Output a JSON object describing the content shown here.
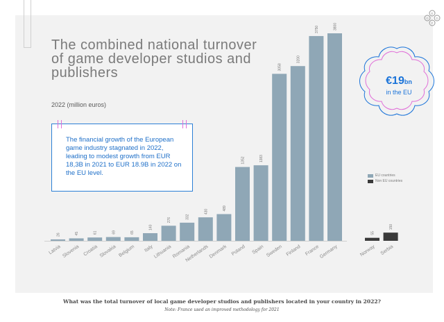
{
  "header": {
    "title": "The combined national turnover of game developer studios and publishers",
    "subtitle": "2022 (million euros)"
  },
  "callout": {
    "text": "The financial growth of the European game industry stagnated in 2022, leading to modest growth from EUR 18,3B in 2021 to EUR 18.9B in 2022 on the EU level."
  },
  "badge": {
    "amount": "€19",
    "unit": "bn",
    "label": "in the EU"
  },
  "logo": {
    "letters": [
      "E",
      "G",
      "D",
      "F"
    ]
  },
  "footer": {
    "question": "What was the total turnover of local game developer studios and publishers located in your country in 2022?",
    "note": "Note: France used an improved methodology for 2021"
  },
  "colors": {
    "eu": "#8fa7b6",
    "non_eu": "#3a3a3a",
    "accent": "#1a73d9",
    "pink": "#e06fd8"
  },
  "chart_data": {
    "type": "bar",
    "title": "The combined national turnover of game developer studios and publishers",
    "subtitle": "2022 (million euros)",
    "legend": {
      "position": "right",
      "entries": [
        "EU countries",
        "Non EU countries"
      ]
    },
    "series": [
      {
        "name": "EU countries",
        "categories": [
          "Latvia",
          "Slovenia",
          "Croatia",
          "Slovakia",
          "Belgium",
          "Italy",
          "Lithuania",
          "Romania",
          "Netherlands",
          "Denmark",
          "Poland",
          "Spain",
          "Sweden",
          "Finland",
          "France",
          "Germany"
        ],
        "values": [
          26,
          45,
          61,
          69,
          65,
          140,
          276,
          332,
          430,
          489,
          1352,
          1383,
          3058,
          3200,
          3750,
          3800
        ]
      },
      {
        "name": "Non EU countries",
        "categories": [
          "Norway",
          "Serbia"
        ],
        "values": [
          55,
          150
        ]
      }
    ],
    "ylim": [
      0,
      3800
    ]
  }
}
